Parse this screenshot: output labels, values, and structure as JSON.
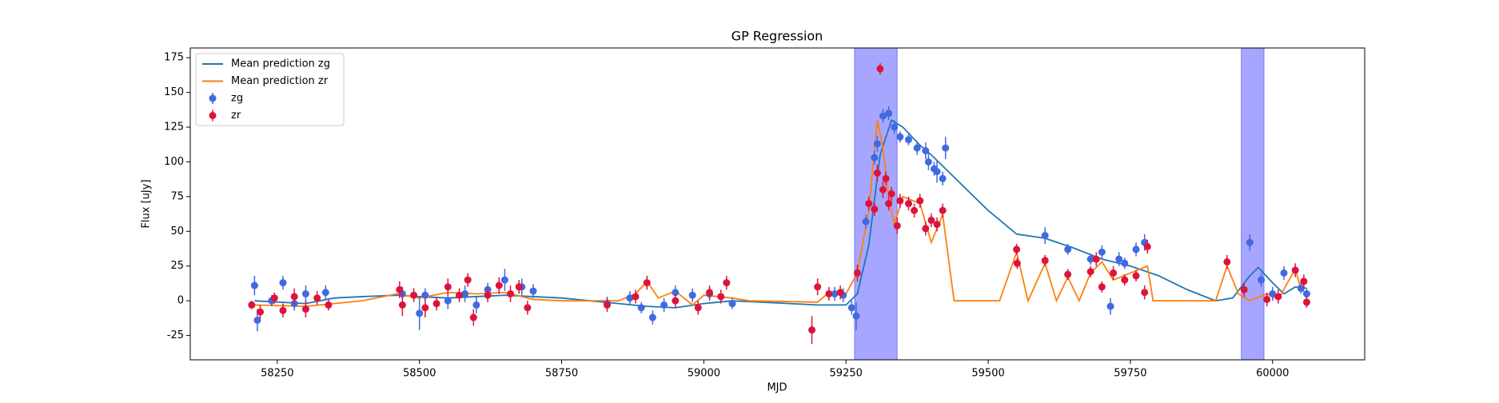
{
  "chart_data": {
    "type": "line",
    "title": "GP Regression",
    "x_label": "MJD",
    "y_label": "Flux [uJy]",
    "xlim": [
      58097,
      60162
    ],
    "ylim": [
      -42.5,
      182
    ],
    "xticks": [
      58250,
      58500,
      58750,
      59000,
      59250,
      59500,
      59750,
      60000
    ],
    "yticks": [
      -25,
      0,
      25,
      50,
      75,
      100,
      125,
      150,
      175
    ],
    "legend": "upper left",
    "grid": false,
    "spans": [
      [
        59265,
        59340
      ],
      [
        59945,
        59985
      ]
    ],
    "span_color": "#0000ff",
    "series": [
      {
        "name": "Mean prediction zg",
        "type": "line",
        "color": "#1f77b4",
        "x": [
          58210,
          58300,
          58350,
          58400,
          58460,
          58500,
          58550,
          58600,
          58650,
          58700,
          58750,
          58800,
          58850,
          58900,
          58950,
          59000,
          59050,
          59100,
          59150,
          59200,
          59250,
          59270,
          59290,
          59310,
          59330,
          59350,
          59380,
          59400,
          59420,
          59450,
          59500,
          59550,
          59600,
          59650,
          59700,
          59750,
          59800,
          59850,
          59900,
          59930,
          59960,
          59975,
          60000,
          60020,
          60040,
          60060
        ],
        "values": [
          0,
          -2,
          2,
          3,
          4,
          3,
          2,
          3,
          4,
          3,
          2,
          0,
          -2,
          -4,
          -5,
          -2,
          0,
          -1,
          -2,
          -3,
          -3,
          5,
          40,
          105,
          130,
          125,
          112,
          105,
          97,
          85,
          65,
          48,
          45,
          38,
          30,
          25,
          18,
          8,
          0,
          2,
          18,
          24,
          13,
          5,
          10,
          9
        ]
      },
      {
        "name": "Mean prediction zr",
        "type": "line",
        "color": "#ff7f0e",
        "x": [
          58210,
          58300,
          58350,
          58400,
          58460,
          58500,
          58550,
          58600,
          58650,
          58700,
          58750,
          58800,
          58850,
          58880,
          58900,
          58920,
          58950,
          58980,
          59000,
          59050,
          59080,
          59200,
          59220,
          59250,
          59270,
          59290,
          59305,
          59315,
          59325,
          59335,
          59350,
          59380,
          59400,
          59420,
          59440,
          59520,
          59550,
          59570,
          59600,
          59620,
          59640,
          59660,
          59680,
          59700,
          59720,
          59750,
          59780,
          59790,
          59900,
          59920,
          59940,
          59960,
          59990,
          60010,
          60040,
          60050,
          60060
        ],
        "values": [
          -3,
          -4,
          -2,
          0,
          5,
          2,
          6,
          5,
          6,
          1,
          0,
          0,
          0,
          5,
          14,
          2,
          7,
          -3,
          4,
          2,
          0,
          -1,
          6,
          5,
          20,
          65,
          130,
          110,
          75,
          55,
          75,
          70,
          42,
          62,
          0,
          0,
          35,
          0,
          27,
          0,
          17,
          0,
          20,
          28,
          15,
          20,
          25,
          0,
          0,
          25,
          5,
          0,
          5,
          1,
          23,
          8,
          5
        ]
      },
      {
        "name": "zg",
        "type": "errorbar",
        "color": "#4169e1",
        "x": [
          58210,
          58215,
          58240,
          58260,
          58280,
          58300,
          58335,
          58470,
          58500,
          58510,
          58550,
          58580,
          58600,
          58620,
          58650,
          58680,
          58700,
          58830,
          58870,
          58890,
          58910,
          58930,
          58950,
          58980,
          59010,
          59050,
          59230,
          59245,
          59260,
          59268,
          59285,
          59300,
          59305,
          59315,
          59325,
          59335,
          59345,
          59360,
          59375,
          59390,
          59395,
          59405,
          59410,
          59420,
          59425,
          59600,
          59640,
          59680,
          59700,
          59715,
          59730,
          59740,
          59760,
          59775,
          59960,
          59980,
          60000,
          60020,
          60050,
          60060
        ],
        "values": [
          11,
          -14,
          0,
          13,
          -2,
          5,
          6,
          5,
          -9,
          4,
          0,
          5,
          -3,
          8,
          15,
          10,
          7,
          -2,
          2,
          -5,
          -12,
          -3,
          6,
          4,
          5,
          -2,
          5,
          4,
          -5,
          -11,
          57,
          103,
          113,
          133,
          135,
          125,
          118,
          116,
          110,
          108,
          100,
          95,
          93,
          88,
          110,
          47,
          37,
          30,
          35,
          -4,
          30,
          27,
          37,
          42,
          42,
          15,
          5,
          20,
          9,
          5
        ],
        "errors": [
          7,
          8,
          4,
          5,
          5,
          6,
          5,
          5,
          12,
          5,
          6,
          6,
          6,
          5,
          8,
          6,
          5,
          5,
          5,
          4,
          5,
          5,
          5,
          5,
          5,
          4,
          5,
          5,
          5,
          10,
          5,
          5,
          6,
          5,
          5,
          5,
          4,
          4,
          5,
          6,
          6,
          5,
          8,
          5,
          8,
          6,
          4,
          4,
          5,
          6,
          5,
          4,
          5,
          6,
          6,
          5,
          5,
          5,
          4,
          4
        ]
      },
      {
        "name": "zr",
        "type": "errorbar",
        "color": "#dc143c",
        "x": [
          58205,
          58220,
          58245,
          58260,
          58280,
          58300,
          58320,
          58340,
          58465,
          58470,
          58490,
          58510,
          58530,
          58550,
          58570,
          58585,
          58595,
          58620,
          58640,
          58660,
          58675,
          58690,
          58830,
          58880,
          58900,
          58950,
          58990,
          59010,
          59030,
          59040,
          59190,
          59200,
          59220,
          59240,
          59270,
          59290,
          59300,
          59305,
          59310,
          59315,
          59320,
          59325,
          59330,
          59340,
          59345,
          59360,
          59370,
          59380,
          59390,
          59400,
          59410,
          59420,
          59550,
          59551,
          59600,
          59640,
          59680,
          59690,
          59700,
          59720,
          59740,
          59760,
          59775,
          59780,
          59920,
          59950,
          59990,
          60010,
          60040,
          60055,
          60060
        ],
        "values": [
          -3,
          -8,
          2,
          -7,
          3,
          -6,
          2,
          -3,
          8,
          -3,
          4,
          -5,
          -2,
          10,
          4,
          15,
          -12,
          4,
          11,
          5,
          10,
          -5,
          -3,
          3,
          13,
          0,
          -5,
          6,
          3,
          13,
          -21,
          10,
          5,
          6,
          20,
          70,
          66,
          92,
          167,
          80,
          88,
          70,
          77,
          54,
          72,
          70,
          65,
          72,
          52,
          58,
          55,
          65,
          37,
          27,
          29,
          19,
          21,
          30,
          10,
          20,
          15,
          18,
          6,
          39,
          28,
          8,
          1,
          3,
          22,
          14,
          -1
        ],
        "errors": [
          3,
          5,
          4,
          5,
          6,
          6,
          5,
          4,
          6,
          8,
          5,
          7,
          5,
          6,
          5,
          5,
          6,
          5,
          6,
          6,
          5,
          5,
          5,
          5,
          5,
          5,
          5,
          5,
          5,
          5,
          10,
          6,
          5,
          5,
          6,
          5,
          5,
          6,
          4,
          6,
          5,
          5,
          5,
          6,
          5,
          5,
          5,
          5,
          5,
          5,
          5,
          5,
          4,
          4,
          4,
          4,
          4,
          5,
          4,
          5,
          4,
          4,
          5,
          5,
          5,
          5,
          5,
          5,
          5,
          5,
          4
        ]
      }
    ]
  }
}
